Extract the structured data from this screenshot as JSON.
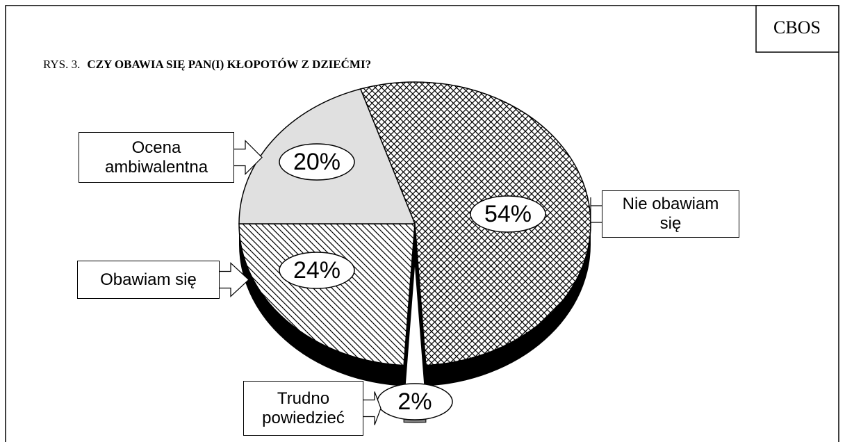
{
  "chart_data": {
    "type": "pie",
    "source": "CBOS",
    "figure_label": "RYS. 3.",
    "title": "CZY OBAWIA SIĘ PAN(I) KŁOPOTÓW Z DZIEĆMI?",
    "categories": [
      "Nie obawiam się",
      "Trudno powiedzieć",
      "Obawiam się",
      "Ocena ambiwalentna"
    ],
    "values": [
      54,
      2,
      24,
      20
    ],
    "value_labels": [
      "54%",
      "2%",
      "24%",
      "20%"
    ],
    "colors": [
      "#ffffff",
      "#808080",
      "#ffffff",
      "#e0e0e0"
    ],
    "patterns": [
      "crosshatch",
      "solid",
      "diagonal",
      "solid"
    ],
    "exploded": [
      false,
      true,
      false,
      false
    ],
    "three_d": true
  }
}
